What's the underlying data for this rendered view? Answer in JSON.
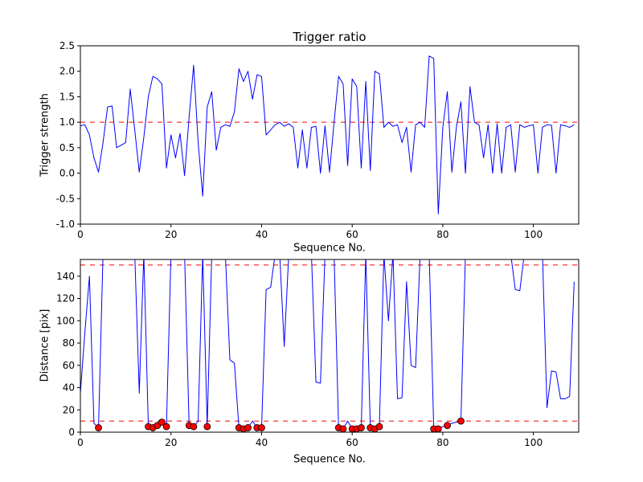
{
  "figure": {
    "background": "#ffffff",
    "line_color": "#0000ff",
    "threshold_color": "#ff0000"
  },
  "chart_data": [
    {
      "type": "line",
      "title": "Trigger ratio",
      "xlabel": "Sequence No.",
      "ylabel": "Trigger strength",
      "xlim": [
        0,
        110
      ],
      "ylim": [
        -1.0,
        2.5
      ],
      "grid": false,
      "legend": null,
      "xticks": [
        0,
        20,
        40,
        60,
        80,
        100
      ],
      "xtick_labels": [
        "0",
        "20",
        "40",
        "60",
        "80",
        "100"
      ],
      "yticks": [
        -1.0,
        -0.5,
        0.0,
        0.5,
        1.0,
        1.5,
        2.0,
        2.5
      ],
      "ytick_labels": [
        "-1.0",
        "-0.5",
        "0.0",
        "0.5",
        "1.0",
        "1.5",
        "2.0",
        "2.5"
      ],
      "hlines": [
        {
          "y": 1.0,
          "color": "#ff0000",
          "style": "dashed"
        }
      ],
      "series": [
        {
          "name": "trigger-strength",
          "color": "#0000ff",
          "x_start": 0,
          "y": [
            0.93,
            0.95,
            0.75,
            0.3,
            0.02,
            0.6,
            1.3,
            1.32,
            0.5,
            0.55,
            0.6,
            1.65,
            0.85,
            0.02,
            0.7,
            1.5,
            1.9,
            1.85,
            1.75,
            0.1,
            0.75,
            0.3,
            0.78,
            -0.05,
            1.1,
            2.12,
            0.6,
            -0.45,
            1.3,
            1.6,
            0.45,
            0.9,
            0.95,
            0.92,
            1.2,
            2.05,
            1.8,
            2.0,
            1.45,
            1.93,
            1.9,
            0.75,
            0.85,
            0.95,
            1.0,
            0.92,
            0.97,
            0.9,
            0.1,
            0.85,
            0.1,
            0.9,
            0.92,
            0.0,
            0.93,
            0.02,
            1.0,
            1.9,
            1.75,
            0.15,
            1.85,
            1.7,
            0.1,
            1.8,
            0.05,
            2.0,
            1.95,
            0.9,
            1.0,
            0.92,
            0.95,
            0.6,
            0.9,
            0.02,
            0.95,
            1.0,
            0.9,
            2.3,
            2.25,
            -0.8,
            0.9,
            1.6,
            0.02,
            0.9,
            1.4,
            0.0,
            1.7,
            1.0,
            0.95,
            0.3,
            0.95,
            0.0,
            0.97,
            0.0,
            0.9,
            0.95,
            0.02,
            0.95,
            0.9,
            0.93,
            0.95,
            0.0,
            0.9,
            0.95,
            0.94,
            0.0,
            0.95,
            0.93,
            0.9,
            0.95
          ]
        }
      ]
    },
    {
      "type": "line",
      "title": "",
      "xlabel": "Sequence No.",
      "ylabel": "Distance [pix]",
      "xlim": [
        0,
        110
      ],
      "ylim": [
        0,
        155
      ],
      "grid": false,
      "legend": null,
      "xticks": [
        0,
        20,
        40,
        60,
        80,
        100
      ],
      "xtick_labels": [
        "0",
        "20",
        "40",
        "60",
        "80",
        "100"
      ],
      "yticks": [
        0,
        20,
        40,
        60,
        80,
        100,
        120,
        140
      ],
      "ytick_labels": [
        "0",
        "20",
        "40",
        "60",
        "80",
        "100",
        "120",
        "140"
      ],
      "hlines": [
        {
          "y": 150,
          "color": "#ff0000",
          "style": "dashed"
        },
        {
          "y": 10,
          "color": "#ff0000",
          "style": "dashed"
        }
      ],
      "series": [
        {
          "name": "distance",
          "color": "#0000ff",
          "x_start": 0,
          "y": [
            35,
            90,
            140,
            8,
            4,
            160,
            160,
            160,
            160,
            160,
            160,
            160,
            160,
            35,
            160,
            5,
            4,
            6,
            9,
            5,
            160,
            160,
            160,
            160,
            6,
            5,
            10,
            160,
            5,
            160,
            160,
            160,
            160,
            65,
            62,
            4,
            3,
            4,
            10,
            4,
            4,
            128,
            130,
            160,
            160,
            77,
            160,
            160,
            160,
            160,
            160,
            160,
            45,
            44,
            160,
            160,
            160,
            4,
            3,
            10,
            3,
            3,
            4,
            160,
            4,
            3,
            5,
            160,
            100,
            160,
            30,
            31,
            135,
            60,
            58,
            160,
            160,
            160,
            3,
            3,
            5,
            6,
            8,
            9,
            10,
            160,
            160,
            160,
            160,
            160,
            160,
            160,
            160,
            160,
            160,
            160,
            128,
            127,
            160,
            160,
            160,
            160,
            160,
            22,
            55,
            54,
            30,
            30,
            32,
            135
          ]
        },
        {
          "name": "triggered-points",
          "type": "scatter",
          "color": "#ff0000",
          "edge_color": "#000000",
          "points": [
            [
              4,
              4
            ],
            [
              15,
              5
            ],
            [
              16,
              4
            ],
            [
              17,
              6
            ],
            [
              18,
              9
            ],
            [
              19,
              5
            ],
            [
              24,
              6
            ],
            [
              25,
              5
            ],
            [
              28,
              5
            ],
            [
              35,
              4
            ],
            [
              36,
              3
            ],
            [
              37,
              4
            ],
            [
              39,
              4
            ],
            [
              40,
              4
            ],
            [
              57,
              4
            ],
            [
              58,
              3
            ],
            [
              60,
              3
            ],
            [
              61,
              3
            ],
            [
              62,
              4
            ],
            [
              64,
              4
            ],
            [
              65,
              3
            ],
            [
              66,
              5
            ],
            [
              78,
              3
            ],
            [
              79,
              3
            ],
            [
              81,
              6
            ],
            [
              84,
              10
            ]
          ]
        }
      ]
    }
  ]
}
